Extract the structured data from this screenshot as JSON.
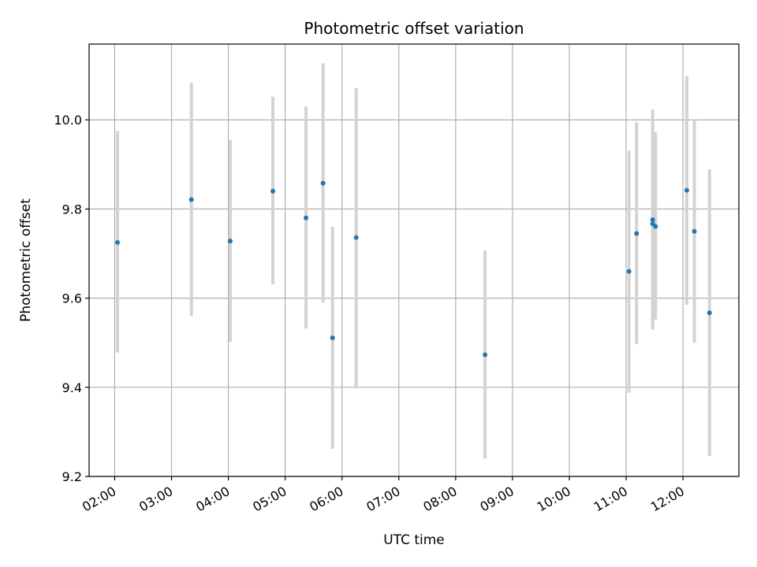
{
  "chart_data": {
    "type": "scatter",
    "title": "Photometric offset variation",
    "xlabel": "UTC time",
    "ylabel": "Photometric offset",
    "x_ticks": [
      "02:00",
      "03:00",
      "04:00",
      "05:00",
      "06:00",
      "07:00",
      "08:00",
      "09:00",
      "10:00",
      "11:00",
      "12:00"
    ],
    "y_ticks": [
      "9.2",
      "9.4",
      "9.6",
      "9.8",
      "10.0"
    ],
    "xlim": [
      "01:33",
      "12:59"
    ],
    "ylim": [
      9.2,
      10.17
    ],
    "grid": true,
    "marker_color": "#1f77b4",
    "errorbar_color": "#d3d3d3",
    "points": [
      {
        "x": "02:03",
        "y": 9.725,
        "err_low": 9.478,
        "err_high": 9.975
      },
      {
        "x": "03:21",
        "y": 9.821,
        "err_low": 9.56,
        "err_high": 10.083
      },
      {
        "x": "04:02",
        "y": 9.728,
        "err_low": 9.502,
        "err_high": 9.955
      },
      {
        "x": "04:47",
        "y": 9.84,
        "err_low": 9.631,
        "err_high": 10.052
      },
      {
        "x": "05:22",
        "y": 9.78,
        "err_low": 9.532,
        "err_high": 10.03
      },
      {
        "x": "05:40",
        "y": 9.858,
        "err_low": 9.59,
        "err_high": 10.127
      },
      {
        "x": "05:50",
        "y": 9.511,
        "err_low": 9.262,
        "err_high": 9.76
      },
      {
        "x": "06:15",
        "y": 9.736,
        "err_low": 9.4,
        "err_high": 10.071
      },
      {
        "x": "08:31",
        "y": 9.473,
        "err_low": 9.24,
        "err_high": 9.707
      },
      {
        "x": "11:03",
        "y": 9.66,
        "err_low": 9.388,
        "err_high": 9.931
      },
      {
        "x": "11:11",
        "y": 9.745,
        "err_low": 9.497,
        "err_high": 9.995
      },
      {
        "x": "11:28",
        "y": 9.776,
        "err_low": 9.53,
        "err_high": 10.023
      },
      {
        "x": "11:28",
        "y": 9.767,
        "err_low": 9.542,
        "err_high": 9.99
      },
      {
        "x": "11:31",
        "y": 9.761,
        "err_low": 9.552,
        "err_high": 9.972
      },
      {
        "x": "12:04",
        "y": 9.842,
        "err_low": 9.585,
        "err_high": 10.098
      },
      {
        "x": "12:12",
        "y": 9.75,
        "err_low": 9.5,
        "err_high": 10.0
      },
      {
        "x": "12:28",
        "y": 9.567,
        "err_low": 9.246,
        "err_high": 9.889
      }
    ]
  }
}
